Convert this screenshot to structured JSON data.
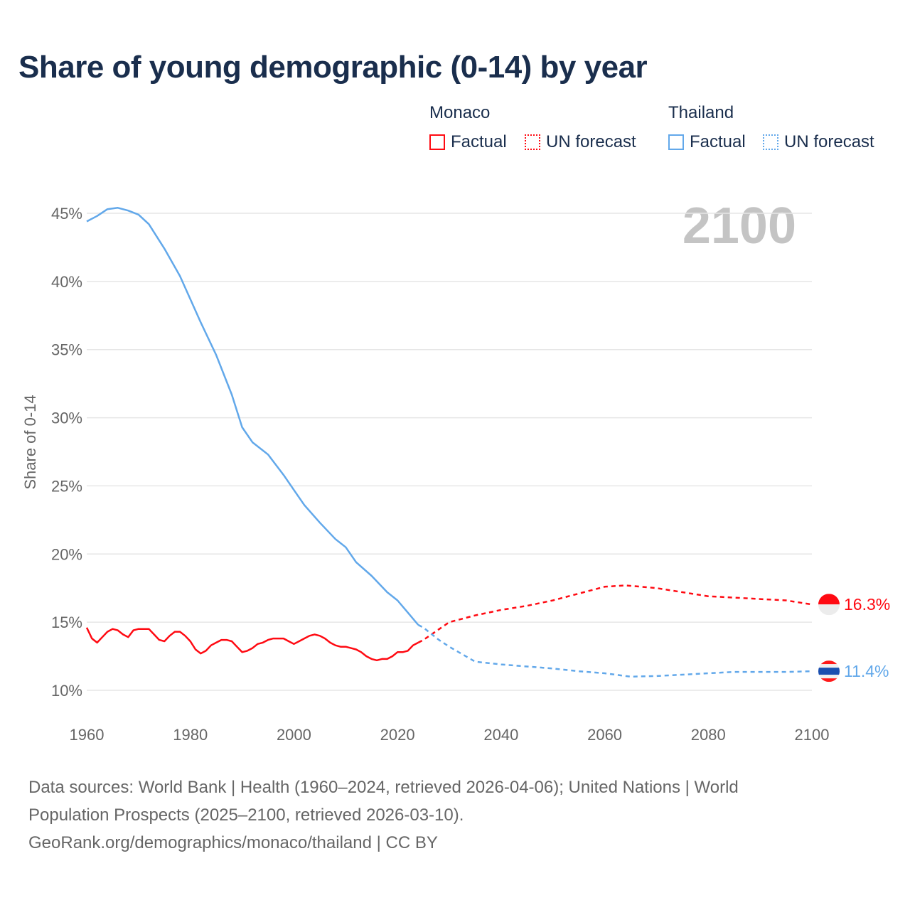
{
  "chart_data": {
    "type": "line",
    "title": "Share of young demographic (0-14) by year",
    "ylabel": "Share of 0-14",
    "xlabel": "",
    "xlim": [
      1960,
      2100
    ],
    "ylim": [
      10,
      45
    ],
    "xticks": [
      "1960",
      "1980",
      "2000",
      "2020",
      "2040",
      "2060",
      "2080",
      "2100"
    ],
    "yticks": [
      "10%",
      "15%",
      "20%",
      "25%",
      "30%",
      "35%",
      "40%",
      "45%"
    ],
    "year_label": "2100",
    "legend": {
      "groups": [
        {
          "name": "Monaco",
          "factual": "Factual",
          "forecast": "UN forecast",
          "color": "#ff0a12"
        },
        {
          "name": "Thailand",
          "factual": "Factual",
          "forecast": "UN forecast",
          "color": "#62a8ea"
        }
      ]
    },
    "series": [
      {
        "name": "Monaco",
        "color": "#ff0a12",
        "end_label": "16.3%",
        "factual": [
          [
            1960,
            14.6
          ],
          [
            1961,
            13.8
          ],
          [
            1962,
            13.5
          ],
          [
            1963,
            13.9
          ],
          [
            1964,
            14.3
          ],
          [
            1965,
            14.5
          ],
          [
            1966,
            14.4
          ],
          [
            1967,
            14.1
          ],
          [
            1968,
            13.9
          ],
          [
            1969,
            14.4
          ],
          [
            1970,
            14.5
          ],
          [
            1971,
            14.5
          ],
          [
            1972,
            14.5
          ],
          [
            1973,
            14.1
          ],
          [
            1974,
            13.7
          ],
          [
            1975,
            13.6
          ],
          [
            1976,
            14.0
          ],
          [
            1977,
            14.3
          ],
          [
            1978,
            14.3
          ],
          [
            1979,
            14.0
          ],
          [
            1980,
            13.6
          ],
          [
            1981,
            13.0
          ],
          [
            1982,
            12.7
          ],
          [
            1983,
            12.9
          ],
          [
            1984,
            13.3
          ],
          [
            1985,
            13.5
          ],
          [
            1986,
            13.7
          ],
          [
            1987,
            13.7
          ],
          [
            1988,
            13.6
          ],
          [
            1989,
            13.2
          ],
          [
            1990,
            12.8
          ],
          [
            1991,
            12.9
          ],
          [
            1992,
            13.1
          ],
          [
            1993,
            13.4
          ],
          [
            1994,
            13.5
          ],
          [
            1995,
            13.7
          ],
          [
            1996,
            13.8
          ],
          [
            1997,
            13.8
          ],
          [
            1998,
            13.8
          ],
          [
            1999,
            13.6
          ],
          [
            2000,
            13.4
          ],
          [
            2001,
            13.6
          ],
          [
            2002,
            13.8
          ],
          [
            2003,
            14.0
          ],
          [
            2004,
            14.1
          ],
          [
            2005,
            14.0
          ],
          [
            2006,
            13.8
          ],
          [
            2007,
            13.5
          ],
          [
            2008,
            13.3
          ],
          [
            2009,
            13.2
          ],
          [
            2010,
            13.2
          ],
          [
            2011,
            13.1
          ],
          [
            2012,
            13.0
          ],
          [
            2013,
            12.8
          ],
          [
            2014,
            12.5
          ],
          [
            2015,
            12.3
          ],
          [
            2016,
            12.2
          ],
          [
            2017,
            12.3
          ],
          [
            2018,
            12.3
          ],
          [
            2019,
            12.5
          ],
          [
            2020,
            12.8
          ],
          [
            2021,
            12.8
          ],
          [
            2022,
            12.9
          ],
          [
            2023,
            13.3
          ],
          [
            2024,
            13.5
          ]
        ],
        "forecast": [
          [
            2024,
            13.5
          ],
          [
            2025,
            13.7
          ],
          [
            2030,
            15.0
          ],
          [
            2035,
            15.5
          ],
          [
            2040,
            15.9
          ],
          [
            2045,
            16.2
          ],
          [
            2050,
            16.6
          ],
          [
            2055,
            17.1
          ],
          [
            2060,
            17.6
          ],
          [
            2064,
            17.7
          ],
          [
            2070,
            17.5
          ],
          [
            2075,
            17.2
          ],
          [
            2080,
            16.9
          ],
          [
            2085,
            16.8
          ],
          [
            2090,
            16.7
          ],
          [
            2095,
            16.6
          ],
          [
            2100,
            16.3
          ]
        ]
      },
      {
        "name": "Thailand",
        "color": "#62a8ea",
        "end_label": "11.4%",
        "factual": [
          [
            1960,
            44.4
          ],
          [
            1962,
            44.8
          ],
          [
            1964,
            45.3
          ],
          [
            1966,
            45.4
          ],
          [
            1968,
            45.2
          ],
          [
            1970,
            44.9
          ],
          [
            1972,
            44.2
          ],
          [
            1975,
            42.4
          ],
          [
            1978,
            40.4
          ],
          [
            1980,
            38.7
          ],
          [
            1982,
            37.0
          ],
          [
            1985,
            34.6
          ],
          [
            1988,
            31.7
          ],
          [
            1990,
            29.3
          ],
          [
            1992,
            28.2
          ],
          [
            1995,
            27.3
          ],
          [
            1998,
            25.8
          ],
          [
            2000,
            24.7
          ],
          [
            2002,
            23.6
          ],
          [
            2005,
            22.3
          ],
          [
            2008,
            21.1
          ],
          [
            2010,
            20.5
          ],
          [
            2012,
            19.4
          ],
          [
            2015,
            18.4
          ],
          [
            2018,
            17.2
          ],
          [
            2020,
            16.6
          ],
          [
            2022,
            15.7
          ],
          [
            2024,
            14.8
          ]
        ],
        "forecast": [
          [
            2024,
            14.8
          ],
          [
            2025,
            14.6
          ],
          [
            2028,
            13.7
          ],
          [
            2030,
            13.2
          ],
          [
            2035,
            12.1
          ],
          [
            2040,
            11.9
          ],
          [
            2045,
            11.75
          ],
          [
            2050,
            11.6
          ],
          [
            2055,
            11.4
          ],
          [
            2060,
            11.25
          ],
          [
            2065,
            11.0
          ],
          [
            2070,
            11.05
          ],
          [
            2075,
            11.15
          ],
          [
            2080,
            11.25
          ],
          [
            2085,
            11.35
          ],
          [
            2090,
            11.35
          ],
          [
            2095,
            11.35
          ],
          [
            2100,
            11.4
          ]
        ]
      }
    ]
  },
  "footer": {
    "line1": "Data sources: World Bank | Health (1960–2024, retrieved 2026-04-06); United Nations | World",
    "line2": "Population Prospects (2025–2100, retrieved 2026-03-10).",
    "line3": "GeoRank.org/demographics/monaco/thailand | CC BY"
  }
}
